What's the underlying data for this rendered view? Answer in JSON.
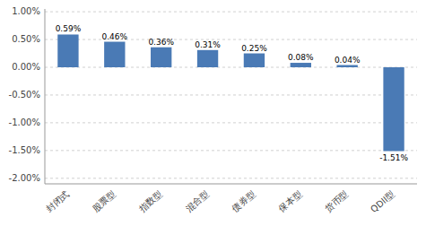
{
  "chart_data": {
    "type": "bar",
    "categories": [
      "封闭式",
      "股票型",
      "指数型",
      "混合型",
      "债券型",
      "保本型",
      "货币型",
      "QDII型"
    ],
    "values": [
      0.59,
      0.46,
      0.36,
      0.31,
      0.25,
      0.08,
      0.04,
      -1.51
    ],
    "value_labels": [
      "0.59%",
      "0.46%",
      "0.36%",
      "0.31%",
      "0.25%",
      "0.08%",
      "0.04%",
      "-1.51%"
    ],
    "color": "#4a7ab5",
    "ylim": [
      -2.1,
      1.05
    ],
    "yticks": [
      {
        "value": -2.0,
        "label": "-2.00%"
      },
      {
        "value": -1.5,
        "label": "-1.50%"
      },
      {
        "value": -1.0,
        "label": "-1.00%"
      },
      {
        "value": -0.5,
        "label": "-0.50%"
      },
      {
        "value": 0.0,
        "label": "0.00%"
      },
      {
        "value": 0.5,
        "label": "0.50%"
      },
      {
        "value": 1.0,
        "label": "1.00%"
      }
    ],
    "grid": true,
    "data_labels": true
  }
}
